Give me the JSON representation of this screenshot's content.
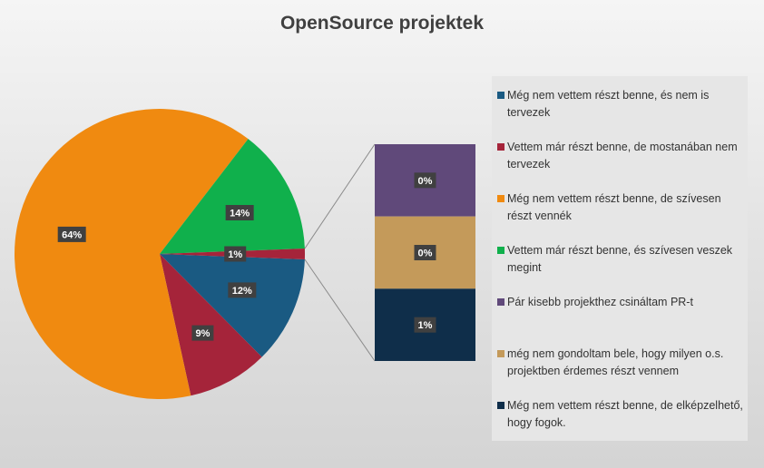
{
  "chart_data": {
    "type": "pie",
    "subtype": "pie-of-pie",
    "title": "OpenSource projektek",
    "legend_position": "right",
    "series": [
      {
        "name": "Még nem vettem részt benne, és nem is tervezek",
        "value": 12,
        "label": "12%",
        "color": "#1a5a82"
      },
      {
        "name": "Vettem már részt benne, de mostanában nem tervezek",
        "value": 9,
        "label": "9%",
        "color": "#a5243a"
      },
      {
        "name": "Még nem vettem részt benne, de szívesen részt vennék",
        "value": 64,
        "label": "64%",
        "color": "#f08a10"
      },
      {
        "name": "Vettem már részt benne, és szívesen veszek megint",
        "value": 14,
        "label": "14%",
        "color": "#10b04c"
      },
      {
        "name": "Pár kisebb projekthez csináltam PR-t",
        "value": 0.3,
        "label": "0%",
        "color": "#60497a"
      },
      {
        "name": "még nem gondoltam bele, hogy milyen o.s. projektben érdemes részt vennem",
        "value": 0.3,
        "label": "0%",
        "color": "#c49a5a"
      },
      {
        "name": "Még nem vettem részt benne, de elképzelhető, hogy fogok.",
        "value": 0.6,
        "label": "1%",
        "color": "#0f2e4a"
      }
    ],
    "main_pie": {
      "order": [
        0,
        1,
        2,
        3
      ],
      "other_label": "1%",
      "other_color": "#a5243a"
    },
    "secondary_stack": {
      "order": [
        4,
        5,
        6
      ]
    }
  }
}
